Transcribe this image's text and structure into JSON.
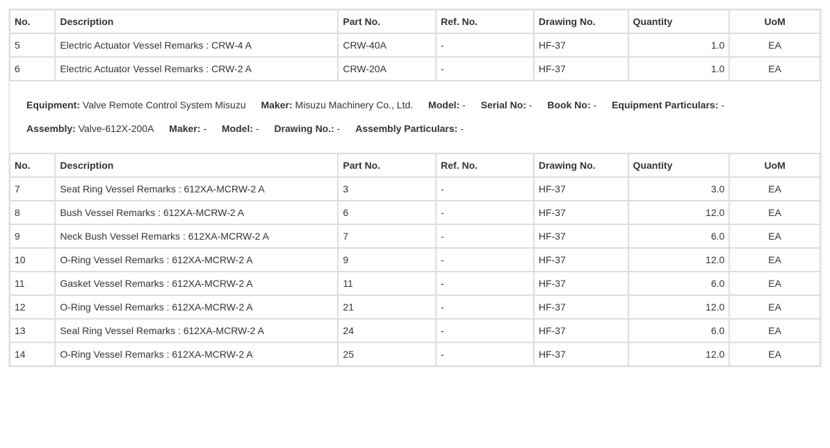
{
  "columns": {
    "no": "No.",
    "description": "Description",
    "part_no": "Part No.",
    "ref_no": "Ref. No.",
    "drawing_no": "Drawing No.",
    "quantity": "Quantity",
    "uom": "UoM"
  },
  "table1": {
    "rows": [
      {
        "no": "5",
        "description": "Electric Actuator Vessel Remarks : CRW-4 A",
        "part_no": "CRW-40A",
        "ref_no": "-",
        "drawing_no": "HF-37",
        "quantity": "1.0",
        "uom": "EA"
      },
      {
        "no": "6",
        "description": "Electric Actuator Vessel Remarks : CRW-2 A",
        "part_no": "CRW-20A",
        "ref_no": "-",
        "drawing_no": "HF-37",
        "quantity": "1.0",
        "uom": "EA"
      }
    ]
  },
  "meta": {
    "equipment_label": "Equipment:",
    "equipment_value": "Valve Remote Control System Misuzu",
    "maker1_label": "Maker:",
    "maker1_value": "Misuzu Machinery Co., Ltd.",
    "model1_label": "Model:",
    "model1_value": "-",
    "serial_label": "Serial No:",
    "serial_value": "-",
    "book_label": "Book No:",
    "book_value": "-",
    "equip_part_label": "Equipment Particulars:",
    "equip_part_value": "-",
    "assembly_label": "Assembly:",
    "assembly_value": "Valve-612X-200A",
    "maker2_label": "Maker:",
    "maker2_value": "-",
    "model2_label": "Model:",
    "model2_value": "-",
    "drawing2_label": "Drawing No.:",
    "drawing2_value": "-",
    "assy_part_label": "Assembly Particulars:",
    "assy_part_value": "-"
  },
  "table2": {
    "rows": [
      {
        "no": "7",
        "description": "Seat Ring Vessel Remarks : 612XA-MCRW-2 A",
        "part_no": "3",
        "ref_no": "-",
        "drawing_no": "HF-37",
        "quantity": "3.0",
        "uom": "EA"
      },
      {
        "no": "8",
        "description": "Bush Vessel Remarks : 612XA-MCRW-2 A",
        "part_no": "6",
        "ref_no": "-",
        "drawing_no": "HF-37",
        "quantity": "12.0",
        "uom": "EA"
      },
      {
        "no": "9",
        "description": "Neck Bush Vessel Remarks : 612XA-MCRW-2 A",
        "part_no": "7",
        "ref_no": "-",
        "drawing_no": "HF-37",
        "quantity": "6.0",
        "uom": "EA"
      },
      {
        "no": "10",
        "description": "O-Ring Vessel Remarks : 612XA-MCRW-2 A",
        "part_no": "9",
        "ref_no": "-",
        "drawing_no": "HF-37",
        "quantity": "12.0",
        "uom": "EA"
      },
      {
        "no": "11",
        "description": "Gasket Vessel Remarks : 612XA-MCRW-2 A",
        "part_no": "11",
        "ref_no": "-",
        "drawing_no": "HF-37",
        "quantity": "6.0",
        "uom": "EA"
      },
      {
        "no": "12",
        "description": "O-Ring Vessel Remarks : 612XA-MCRW-2 A",
        "part_no": "21",
        "ref_no": "-",
        "drawing_no": "HF-37",
        "quantity": "12.0",
        "uom": "EA"
      },
      {
        "no": "13",
        "description": "Seal Ring Vessel Remarks : 612XA-MCRW-2 A",
        "part_no": "24",
        "ref_no": "-",
        "drawing_no": "HF-37",
        "quantity": "6.0",
        "uom": "EA"
      },
      {
        "no": "14",
        "description": "O-Ring Vessel Remarks : 612XA-MCRW-2 A",
        "part_no": "25",
        "ref_no": "-",
        "drawing_no": "HF-37",
        "quantity": "12.0",
        "uom": "EA"
      }
    ]
  }
}
